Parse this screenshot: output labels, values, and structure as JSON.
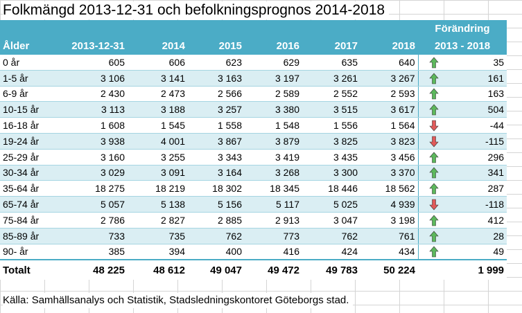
{
  "title": "Folkmängd 2013-12-31 och befolkningsprognos 2014-2018",
  "header": {
    "change_top": "Förändring",
    "age": "Ålder",
    "years": [
      "2013-12-31",
      "2014",
      "2015",
      "2016",
      "2017",
      "2018"
    ],
    "change_bottom": "2013 - 2018"
  },
  "rows": [
    {
      "age": "0 år",
      "values": [
        "605",
        "606",
        "623",
        "629",
        "635",
        "640"
      ],
      "trend": "up",
      "change": "35"
    },
    {
      "age": "1-5 år",
      "values": [
        "3 106",
        "3 141",
        "3 163",
        "3 197",
        "3 261",
        "3 267"
      ],
      "trend": "up",
      "change": "161"
    },
    {
      "age": "6-9 år",
      "values": [
        "2 430",
        "2 473",
        "2 566",
        "2 589",
        "2 552",
        "2 593"
      ],
      "trend": "up",
      "change": "163"
    },
    {
      "age": "10-15 år",
      "values": [
        "3 113",
        "3 188",
        "3 257",
        "3 380",
        "3 515",
        "3 617"
      ],
      "trend": "up",
      "change": "504"
    },
    {
      "age": "16-18 år",
      "values": [
        "1 608",
        "1 545",
        "1 558",
        "1 548",
        "1 556",
        "1 564"
      ],
      "trend": "down",
      "change": "-44"
    },
    {
      "age": "19-24 år",
      "values": [
        "3 938",
        "4 001",
        "3 867",
        "3 879",
        "3 825",
        "3 823"
      ],
      "trend": "down",
      "change": "-115"
    },
    {
      "age": "25-29 år",
      "values": [
        "3 160",
        "3 255",
        "3 343",
        "3 419",
        "3 435",
        "3 456"
      ],
      "trend": "up",
      "change": "296"
    },
    {
      "age": "30-34 år",
      "values": [
        "3 029",
        "3 091",
        "3 164",
        "3 268",
        "3 300",
        "3 370"
      ],
      "trend": "up",
      "change": "341"
    },
    {
      "age": "35-64 år",
      "values": [
        "18 275",
        "18 219",
        "18 302",
        "18 345",
        "18 446",
        "18 562"
      ],
      "trend": "up",
      "change": "287"
    },
    {
      "age": "65-74 år",
      "values": [
        "5 057",
        "5 138",
        "5 156",
        "5 117",
        "5 025",
        "4 939"
      ],
      "trend": "down",
      "change": "-118"
    },
    {
      "age": "75-84 år",
      "values": [
        "2 786",
        "2 827",
        "2 885",
        "2 913",
        "3 047",
        "3 198"
      ],
      "trend": "up",
      "change": "412"
    },
    {
      "age": "85-89 år",
      "values": [
        "733",
        "735",
        "762",
        "773",
        "762",
        "761"
      ],
      "trend": "up",
      "change": "28"
    },
    {
      "age": "90- år",
      "values": [
        "385",
        "394",
        "400",
        "416",
        "424",
        "434"
      ],
      "trend": "up",
      "change": "49"
    }
  ],
  "total": {
    "label": "Totalt",
    "values": [
      "48 225",
      "48 612",
      "49 047",
      "49 472",
      "49 783",
      "50 224"
    ],
    "change": "1 999"
  },
  "source": "Källa:  Samhällsanalys och Statistik, Stadsledningskontoret Göteborgs stad.",
  "colors": {
    "header_bg": "#4bacc6",
    "band_bg": "#daeef3",
    "arrow_up": "#5cb85c",
    "arrow_down": "#e05a5a"
  },
  "icons": {
    "up": "arrow-up-icon",
    "down": "arrow-down-icon"
  }
}
